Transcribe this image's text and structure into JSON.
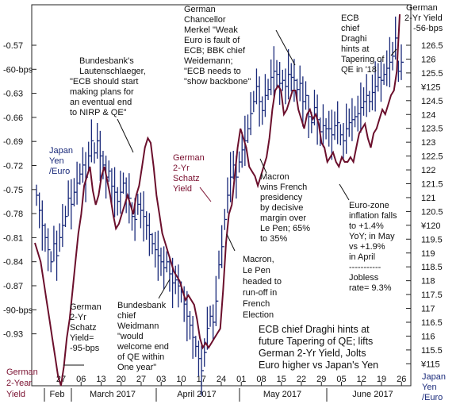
{
  "chart_data": {
    "type": "line",
    "title": "ECB chief Draghi hints at future Tapering of QE; lifts German 2-Yr Yield, Jolts Euro higher vs Japan's Yen",
    "title_lines": [
      "ECB chief Draghi hints at",
      "future Tapering of QE; lifts",
      "German 2-Yr Yield, Jolts",
      "Euro higher vs Japan's Yen"
    ],
    "x_axis": {
      "day_labels": [
        "27",
        "06",
        "13",
        "20",
        "27",
        "03",
        "10",
        "17",
        "24",
        "01",
        "08",
        "15",
        "22",
        "29",
        "05",
        "12",
        "19",
        "26"
      ],
      "month_labels": [
        "Feb",
        "March 2017",
        "April 2017",
        "May 2017",
        "June 2017"
      ]
    },
    "left_axis": {
      "label_lines": [
        "German",
        "2-Year",
        "Yield"
      ],
      "ylim": [
        -0.95,
        -0.55
      ],
      "ticks": [
        "-0.57",
        "-60-bps",
        "-0.63",
        "-0.66",
        "-0.69",
        "-0.72",
        "-0.75",
        "-0.78",
        "-0.81",
        "-0.84",
        "-0.87",
        "-90-bps",
        "-0.93"
      ]
    },
    "right_axis": {
      "label_lines": [
        "Japan",
        "Yen",
        "/Euro"
      ],
      "ylim": [
        114.7,
        127.3
      ],
      "ticks": [
        "126.5",
        "126",
        "125.5",
        "¥125",
        "124.5",
        "124",
        "123.5",
        "123",
        "122.5",
        "122",
        "121.5",
        "121",
        "120.5",
        "¥120",
        "119.5",
        "119",
        "118.5",
        "118",
        "117.5",
        "117",
        "116.5",
        "116",
        "115.5",
        "¥115"
      ]
    },
    "series": [
      {
        "name": "German 2-Yr Yield",
        "axis": "left",
        "color": "#6b0f2c",
        "values": [
          -0.8,
          -0.81,
          -0.82,
          -0.84,
          -0.86,
          -0.88,
          -0.9,
          -0.92,
          -0.94,
          -0.95,
          -0.93,
          -0.9,
          -0.88,
          -0.85,
          -0.82,
          -0.79,
          -0.77,
          -0.74,
          -0.73,
          -0.72,
          -0.745,
          -0.76,
          -0.75,
          -0.73,
          -0.72,
          -0.735,
          -0.75,
          -0.77,
          -0.785,
          -0.78,
          -0.77,
          -0.76,
          -0.75,
          -0.76,
          -0.77,
          -0.75,
          -0.74,
          -0.72,
          -0.7,
          -0.69,
          -0.695,
          -0.72,
          -0.75,
          -0.77,
          -0.79,
          -0.8,
          -0.81,
          -0.82,
          -0.83,
          -0.835,
          -0.84,
          -0.85,
          -0.86,
          -0.855,
          -0.86,
          -0.865,
          -0.88,
          -0.9,
          -0.91,
          -0.905,
          -0.91,
          -0.905,
          -0.9,
          -0.895,
          -0.89,
          -0.85,
          -0.8,
          -0.77,
          -0.76,
          -0.73,
          -0.7,
          -0.68,
          -0.69,
          -0.7,
          -0.72,
          -0.725,
          -0.73,
          -0.74,
          -0.73,
          -0.72,
          -0.71,
          -0.69,
          -0.66,
          -0.64,
          -0.635,
          -0.64,
          -0.665,
          -0.66,
          -0.65,
          -0.64,
          -0.64,
          -0.66,
          -0.67,
          -0.68,
          -0.665,
          -0.66,
          -0.67,
          -0.665,
          -0.675,
          -0.695,
          -0.7,
          -0.715,
          -0.71,
          -0.705,
          -0.715,
          -0.72,
          -0.71,
          -0.715,
          -0.715,
          -0.71,
          -0.715,
          -0.7,
          -0.685,
          -0.68,
          -0.675,
          -0.69,
          -0.7,
          -0.685,
          -0.68,
          -0.67,
          -0.66,
          -0.665,
          -0.655,
          -0.645,
          -0.64,
          -0.62,
          -0.56
        ]
      },
      {
        "name": "Japan Yen /Euro",
        "axis": "right",
        "color": "#1a2a7a",
        "values": [
          121.0,
          120.5,
          120.0,
          119.6,
          119.2,
          118.8,
          119.4,
          119.0,
          119.6,
          120.0,
          120.3,
          120.9,
          120.7,
          121.1,
          121.4,
          121.7,
          122.0,
          121.6,
          122.3,
          122.8,
          122.4,
          122.8,
          122.3,
          122.0,
          121.6,
          121.8,
          121.3,
          121.1,
          120.8,
          121.1,
          121.4,
          121.0,
          120.9,
          120.3,
          120.2,
          120.7,
          120.5,
          120.3,
          120.0,
          119.7,
          119.4,
          119.2,
          119.0,
          118.8,
          118.6,
          118.8,
          118.4,
          118.1,
          118.2,
          118.0,
          117.8,
          117.4,
          117.0,
          116.7,
          116.3,
          116.0,
          115.6,
          115.2,
          115.8,
          116.6,
          117.0,
          116.8,
          117.5,
          118.7,
          119.3,
          120.2,
          121.0,
          121.6,
          122.0,
          121.6,
          122.1,
          122.5,
          122.8,
          123.2,
          123.7,
          124.1,
          124.6,
          124.1,
          123.8,
          124.3,
          124.5,
          124.9,
          125.1,
          125.0,
          124.7,
          124.8,
          124.6,
          125.0,
          124.9,
          124.8,
          124.5,
          124.7,
          124.1,
          124.3,
          123.6,
          123.4,
          123.9,
          123.5,
          123.1,
          123.3,
          123.2,
          123.2,
          123.0,
          123.3,
          123.4,
          123.0,
          122.8,
          123.2,
          123.4,
          123.5,
          123.6,
          123.7,
          123.9,
          124.1,
          124.3,
          124.1,
          124.4,
          124.6,
          124.9,
          124.8,
          125.0,
          125.2,
          125.4,
          125.6,
          126.2,
          125.1,
          125.4
        ]
      }
    ],
    "annotations": [
      {
        "key": "merkel",
        "lines": [
          "German",
          "Chancellor",
          "Merkel \"Weak",
          "Euro is fault of",
          "ECB; BBK chief",
          "Weidemann;",
          "\"ECB needs to",
          "\"show backbone\""
        ]
      },
      {
        "key": "lautenschlaeger",
        "lines": [
          "Bundesbank's",
          "Lautenschlaeger,",
          "\"ECB should start",
          "making plans for",
          "an eventual end",
          "to NIRP & QE\""
        ]
      },
      {
        "key": "draghi_top",
        "lines": [
          "ECB",
          "chief",
          "Draghi",
          "hints at",
          "Tapering of",
          "QE in '18"
        ]
      },
      {
        "key": "yield_top",
        "lines": [
          "German",
          "2-Yr Yield",
          "-56-bps"
        ]
      },
      {
        "key": "macron_wins",
        "lines": [
          "Macron",
          "wins French",
          "presidency",
          "by decisive",
          "margin over",
          "Le Pen; 65%",
          "to 35%"
        ]
      },
      {
        "key": "inflation",
        "lines": [
          "Euro-zone",
          "inflation falls",
          "to +1.4%",
          "YoY; in May",
          "vs +1.9%",
          "in April"
        ]
      },
      {
        "key": "jobless",
        "lines": [
          "Jobless",
          "rate= 9.3%"
        ]
      },
      {
        "key": "macron_lepen",
        "lines": [
          "Macron,",
          "Le Pen",
          "headed to",
          "run-off in",
          "French",
          "Election"
        ]
      },
      {
        "key": "weidmann",
        "lines": [
          "Bundesbank",
          "chief",
          "Weidmann",
          "\"would",
          "welcome end",
          "of QE within",
          "One year\""
        ]
      },
      {
        "key": "schatz_low",
        "lines": [
          "German",
          "2-Yr",
          "Schatz",
          "Yield=",
          "-95-bps"
        ]
      },
      {
        "key": "schatz_mid",
        "lines": [
          "German",
          "2-Yr",
          "Schatz",
          "Yield"
        ]
      },
      {
        "key": "japan_left",
        "lines": [
          "Japan",
          "Yen",
          "/Euro"
        ]
      }
    ],
    "separator": "-----------",
    "grid": false,
    "colors": {
      "yield": "#6b0f2c",
      "yen": "#1a2a7a",
      "text": "#111111"
    }
  }
}
